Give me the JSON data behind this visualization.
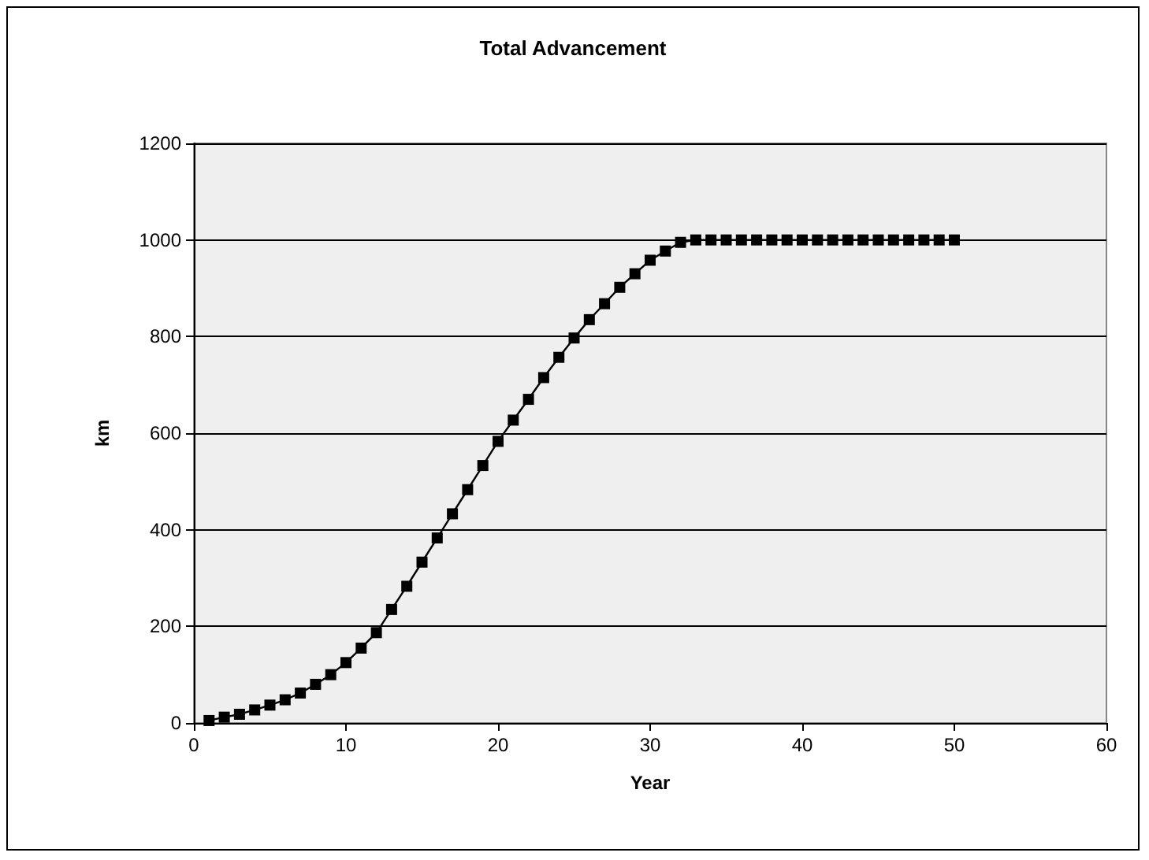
{
  "chart_data": {
    "type": "line",
    "title": "Total Advancement",
    "xlabel": "Year",
    "ylabel": "km",
    "series": [
      {
        "color": "#000000",
        "x": [
          1,
          2,
          3,
          4,
          5,
          6,
          7,
          8,
          9,
          10,
          11,
          12,
          13,
          14,
          15,
          16,
          17,
          18,
          19,
          20,
          21,
          22,
          23,
          24,
          25,
          26,
          27,
          28,
          29,
          30,
          31,
          32,
          33,
          34,
          35,
          36,
          37,
          38,
          39,
          40,
          41,
          42,
          43,
          44,
          45,
          46,
          47,
          48,
          49,
          50
        ],
        "values": [
          5,
          12,
          18,
          27,
          37,
          48,
          62,
          80,
          100,
          125,
          155,
          187,
          235,
          283,
          333,
          383,
          433,
          483,
          533,
          583,
          627,
          670,
          715,
          757,
          797,
          835,
          868,
          902,
          930,
          958,
          977,
          995,
          1000,
          1000,
          1000,
          1000,
          1000,
          1000,
          1000,
          1000,
          1000,
          1000,
          1000,
          1000,
          1000,
          1000,
          1000,
          1000,
          1000,
          1000
        ]
      }
    ],
    "xlim": [
      0,
      60
    ],
    "xticks": [
      0,
      10,
      20,
      30,
      40,
      50,
      60
    ],
    "ylim": [
      0,
      1200
    ],
    "yticks": [
      0,
      200,
      400,
      600,
      800,
      1000,
      1200
    ],
    "grid": "y",
    "marker": "square",
    "line_style": "solid"
  }
}
